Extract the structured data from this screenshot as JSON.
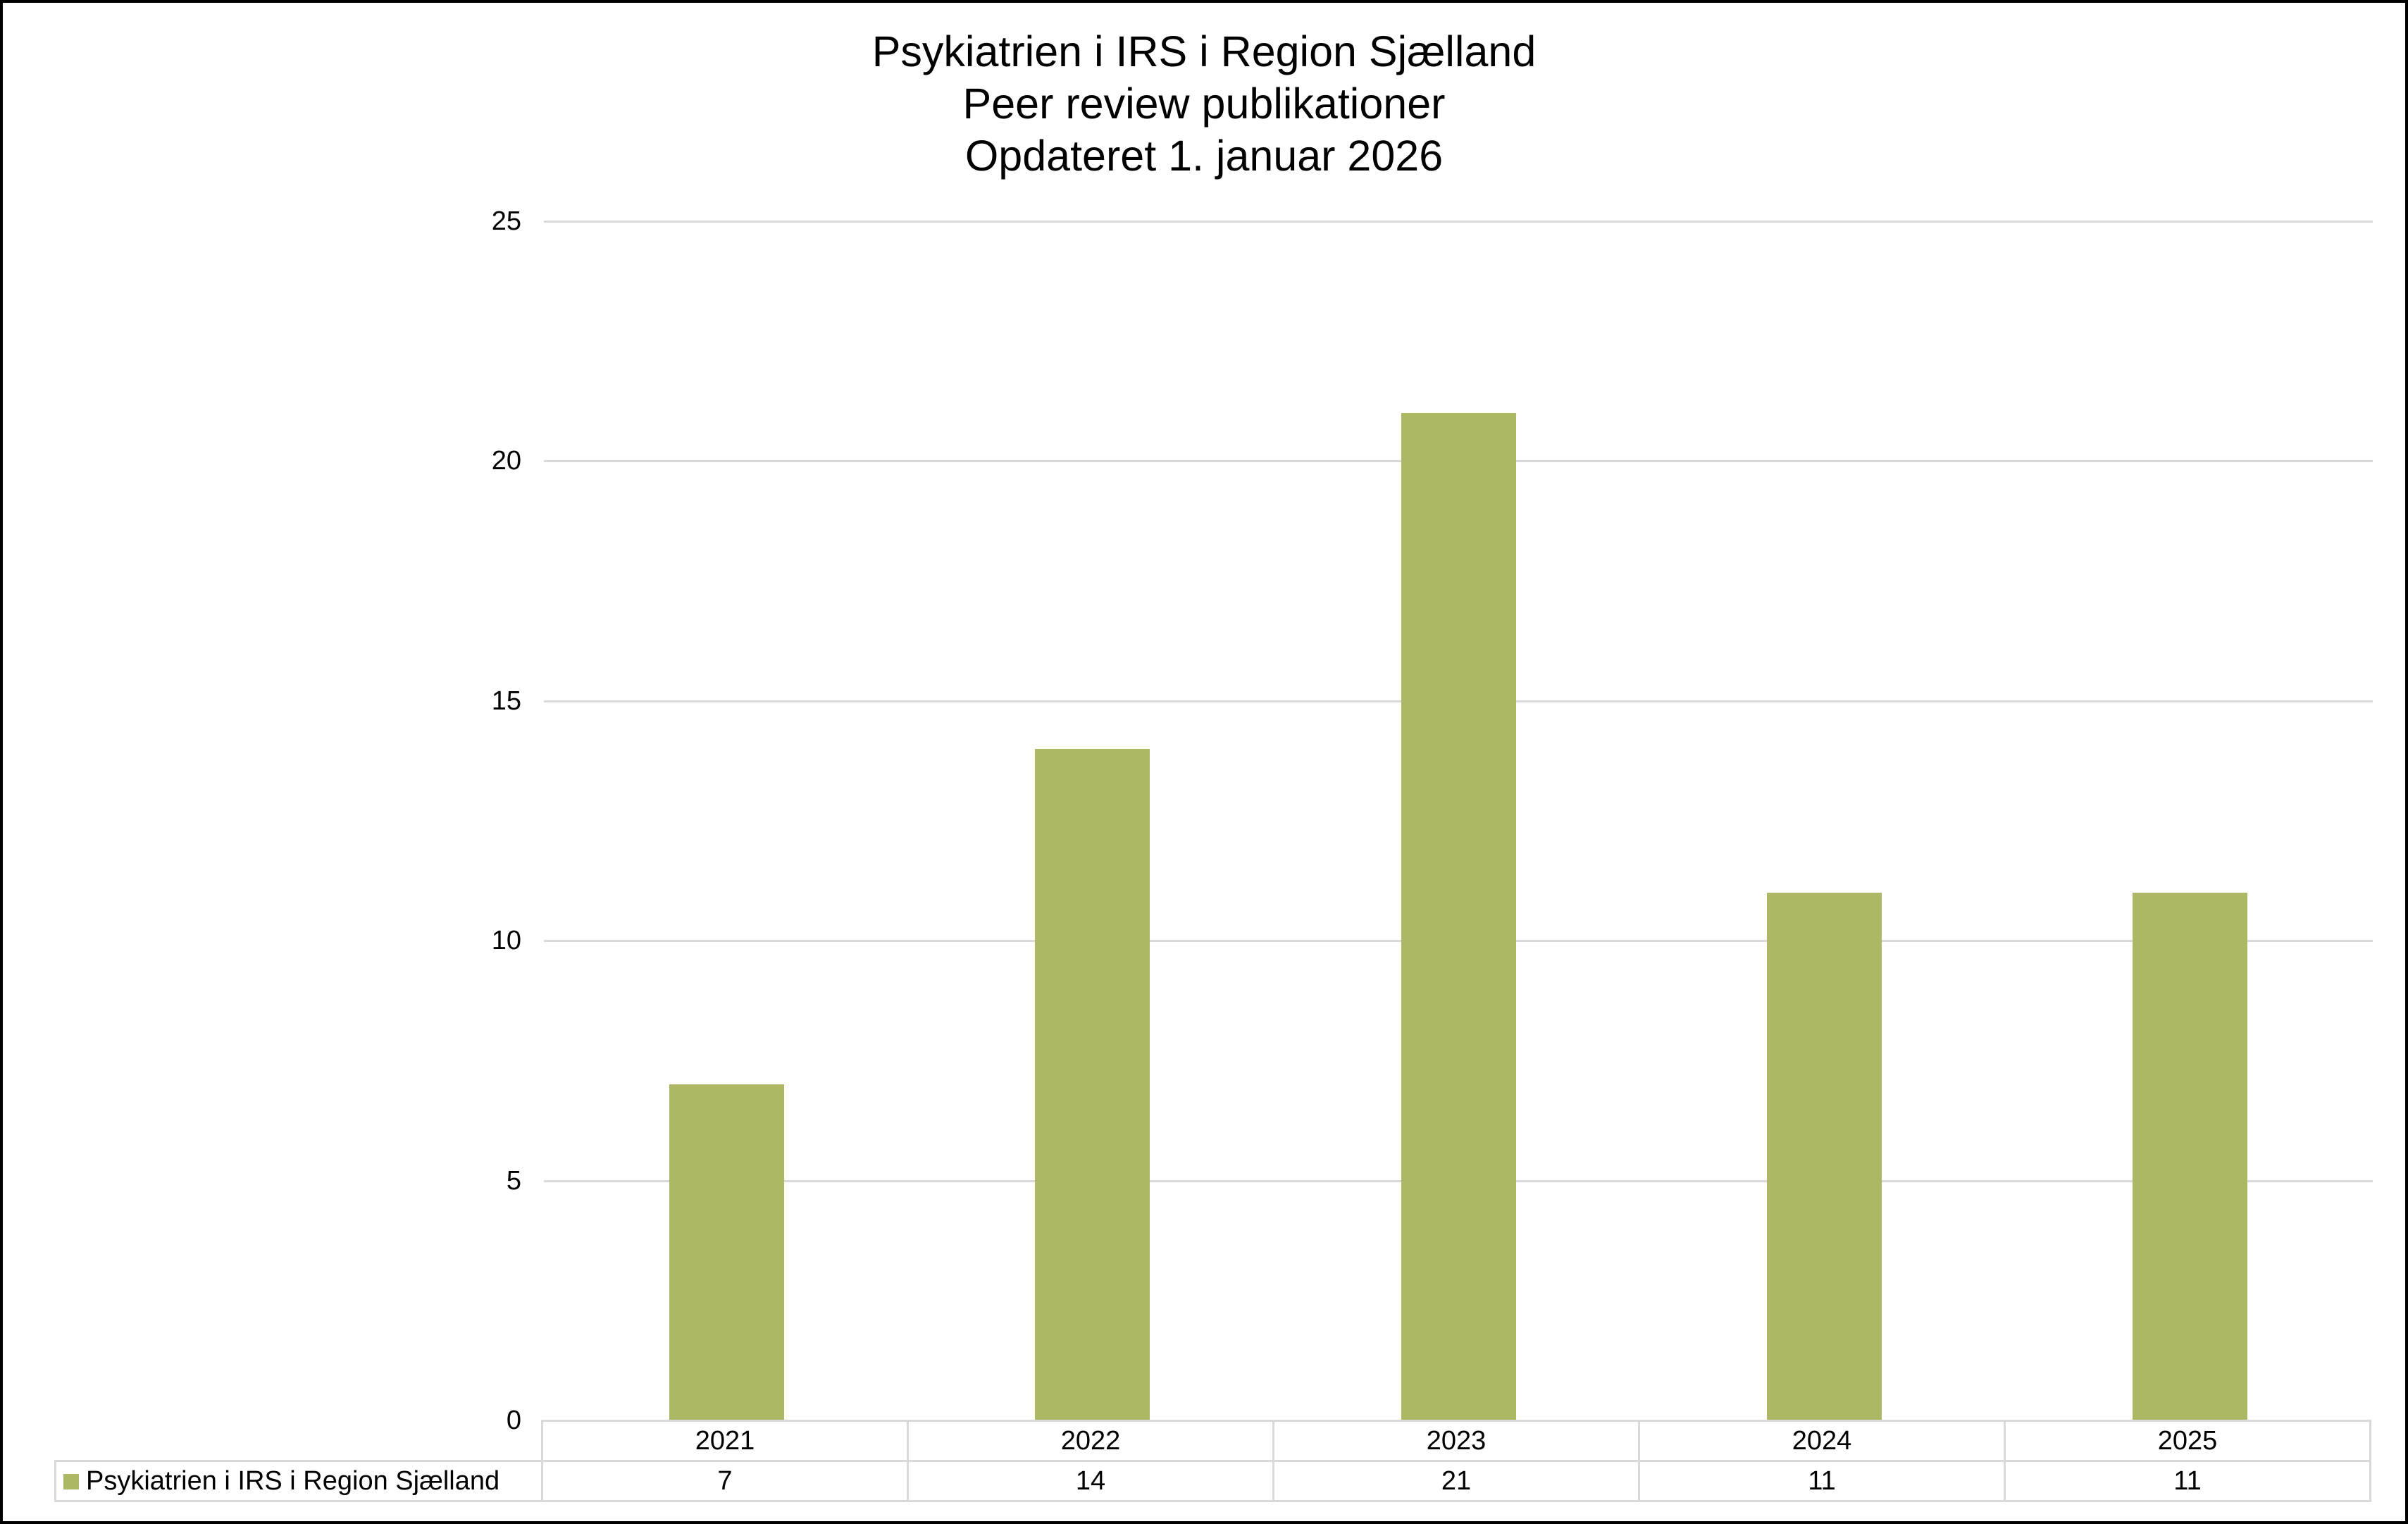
{
  "title": {
    "line1": "Psykiatrien i IRS i Region Sjælland",
    "line2": "Peer review publikationer",
    "line3": "Opdateret 1. januar 2026"
  },
  "y_axis": {
    "ticks": [
      "25",
      "20",
      "15",
      "10",
      "5",
      "0"
    ]
  },
  "table": {
    "categories": [
      "2021",
      "2022",
      "2023",
      "2024",
      "2025"
    ],
    "series_label": "Psykiatrien i IRS i Region Sjælland",
    "values": [
      "7",
      "14",
      "21",
      "11",
      "11"
    ]
  },
  "colors": {
    "bar": "#adb764",
    "grid": "#d9d9d9"
  },
  "chart_data": {
    "type": "bar",
    "title": "Psykiatrien i IRS i Region Sjælland / Peer review publikationer / Opdateret 1. januar 2026",
    "categories": [
      "2021",
      "2022",
      "2023",
      "2024",
      "2025"
    ],
    "series": [
      {
        "name": "Psykiatrien i IRS i Region Sjælland",
        "values": [
          7,
          14,
          21,
          11,
          11
        ],
        "color": "#adb764"
      }
    ],
    "xlabel": "",
    "ylabel": "",
    "ylim": [
      0,
      25
    ],
    "yticks": [
      0,
      5,
      10,
      15,
      20,
      25
    ],
    "grid": true,
    "legend_position": "data table below"
  }
}
